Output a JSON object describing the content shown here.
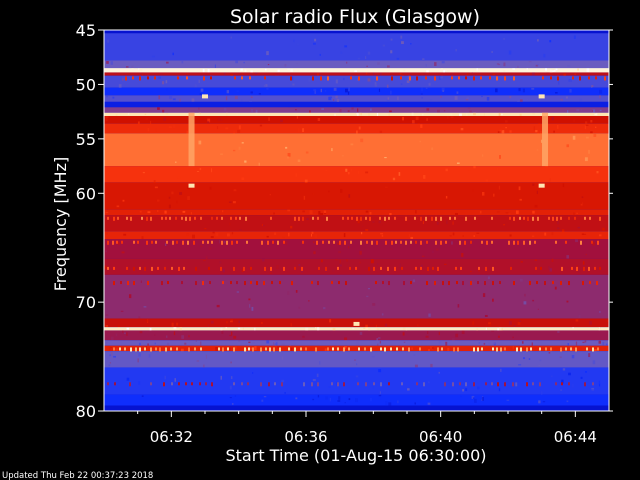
{
  "chart_data": {
    "type": "heatmap",
    "title": "Solar radio Flux (Glasgow)",
    "xlabel": "Start Time (01-Aug-15 06:30:00)",
    "ylabel": "Frequency [MHz]",
    "footer": "Updated Thu Feb 22 00:37:23 2018",
    "x_range_minutes": [
      0,
      15
    ],
    "y_range_mhz": [
      45,
      80
    ],
    "y_scale": "linear",
    "x_ticks": [
      {
        "label": "06:32",
        "minutes": 2
      },
      {
        "label": "06:36",
        "minutes": 6
      },
      {
        "label": "06:40",
        "minutes": 10
      },
      {
        "label": "06:44",
        "minutes": 14
      }
    ],
    "y_ticks": [
      {
        "label": "45",
        "mhz": 45
      },
      {
        "label": "50",
        "mhz": 50
      },
      {
        "label": "55",
        "mhz": 55
      },
      {
        "label": "60",
        "mhz": 60
      },
      {
        "label": "70",
        "mhz": 70
      },
      {
        "label": "80",
        "mhz": 80
      }
    ],
    "colormap": [
      "#0000b0",
      "#1030ff",
      "#6a5cc0",
      "#a01040",
      "#d01000",
      "#ff3a10",
      "#ff8040",
      "#ffe0a0",
      "#ffffff"
    ],
    "frequency_bands": [
      {
        "from": 45.0,
        "to": 45.3,
        "level": 0.05
      },
      {
        "from": 45.3,
        "to": 47.8,
        "level": 0.18
      },
      {
        "from": 47.8,
        "to": 48.5,
        "level": 0.25
      },
      {
        "from": 48.5,
        "to": 48.9,
        "level": 0.95
      },
      {
        "from": 48.9,
        "to": 49.2,
        "level": 0.45
      },
      {
        "from": 49.2,
        "to": 50.3,
        "level": 0.2
      },
      {
        "from": 50.3,
        "to": 51.0,
        "level": 0.12
      },
      {
        "from": 51.0,
        "to": 51.6,
        "level": 0.22
      },
      {
        "from": 51.6,
        "to": 52.1,
        "level": 0.08
      },
      {
        "from": 52.1,
        "to": 52.6,
        "level": 0.3
      },
      {
        "from": 52.6,
        "to": 52.9,
        "level": 0.9
      },
      {
        "from": 52.9,
        "to": 53.6,
        "level": 0.5
      },
      {
        "from": 53.6,
        "to": 54.5,
        "level": 0.58
      },
      {
        "from": 54.5,
        "to": 57.5,
        "level": 0.72
      },
      {
        "from": 57.5,
        "to": 59.0,
        "level": 0.6
      },
      {
        "from": 59.0,
        "to": 61.5,
        "level": 0.52
      },
      {
        "from": 61.5,
        "to": 62.0,
        "level": 0.55
      },
      {
        "from": 62.0,
        "to": 63.5,
        "level": 0.46
      },
      {
        "from": 63.5,
        "to": 64.2,
        "level": 0.56
      },
      {
        "from": 64.2,
        "to": 66.0,
        "level": 0.38
      },
      {
        "from": 66.0,
        "to": 67.5,
        "level": 0.42
      },
      {
        "from": 67.5,
        "to": 71.5,
        "level": 0.33
      },
      {
        "from": 71.5,
        "to": 72.3,
        "level": 0.48
      },
      {
        "from": 72.3,
        "to": 72.6,
        "level": 0.92
      },
      {
        "from": 72.6,
        "to": 73.5,
        "level": 0.36
      },
      {
        "from": 73.5,
        "to": 74.0,
        "level": 0.25
      },
      {
        "from": 74.0,
        "to": 74.5,
        "level": 0.55
      },
      {
        "from": 74.5,
        "to": 76.0,
        "level": 0.24
      },
      {
        "from": 76.0,
        "to": 78.5,
        "level": 0.15
      },
      {
        "from": 78.5,
        "to": 79.5,
        "level": 0.12
      },
      {
        "from": 79.5,
        "to": 80.0,
        "level": 0.05
      }
    ],
    "bursts": [
      {
        "minutes": 2.6,
        "from_mhz": 52.6,
        "to_mhz": 57.5
      },
      {
        "minutes": 13.1,
        "from_mhz": 52.6,
        "to_mhz": 57.5
      }
    ],
    "hot_spots": [
      {
        "minutes": 3.0,
        "mhz": 51.1
      },
      {
        "minutes": 2.6,
        "mhz": 59.3
      },
      {
        "minutes": 13.0,
        "mhz": 51.1
      },
      {
        "minutes": 13.0,
        "mhz": 59.3
      },
      {
        "minutes": 7.5,
        "mhz": 72.0
      }
    ]
  }
}
